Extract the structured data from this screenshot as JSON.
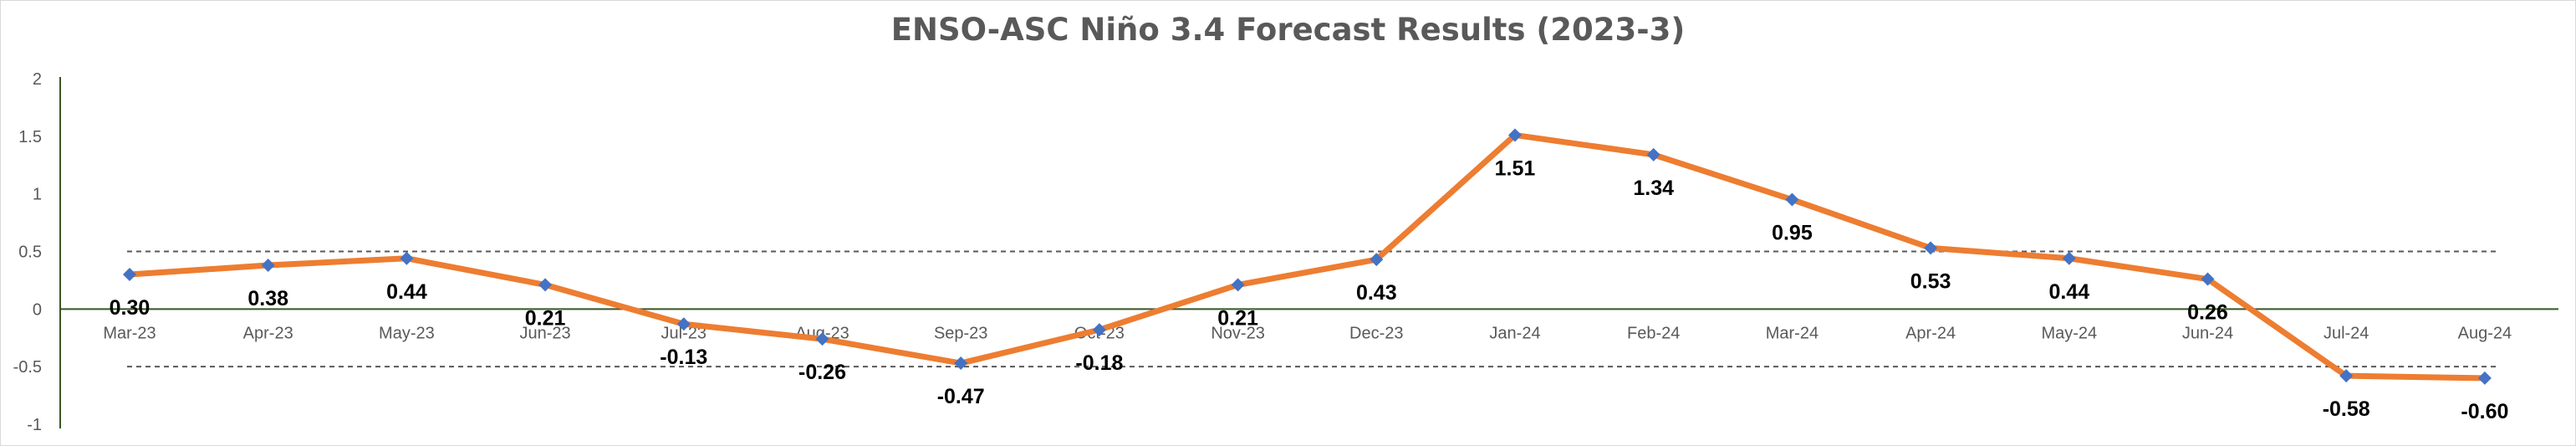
{
  "chart_data": {
    "type": "line",
    "title": "ENSO-ASC Niño 3.4 Forecast Results (2023-3)",
    "xlabel": "",
    "ylabel": "",
    "categories": [
      "Mar-23",
      "Apr-23",
      "May-23",
      "Jun-23",
      "Jul-23",
      "Aug-23",
      "Sep-23",
      "Oct-23",
      "Nov-23",
      "Dec-23",
      "Jan-24",
      "Feb-24",
      "Mar-24",
      "Apr-24",
      "May-24",
      "Jun-24",
      "Jul-24",
      "Aug-24"
    ],
    "series": [
      {
        "values": [
          0.3,
          0.38,
          0.44,
          0.21,
          -0.13,
          -0.26,
          -0.47,
          -0.18,
          0.21,
          0.43,
          1.51,
          1.34,
          0.95,
          0.53,
          0.44,
          0.26,
          -0.58,
          -0.6
        ],
        "labels": [
          "0.30",
          "0.38",
          "0.44",
          "0.21",
          "-0.13",
          "-0.26",
          "-0.47",
          "-0.18",
          "0.21",
          "0.43",
          "1.51",
          "1.34",
          "0.95",
          "0.53",
          "0.44",
          "0.26",
          "-0.58",
          "-0.60"
        ],
        "line_color": "#ED7D31",
        "marker_color": "#4472C4",
        "marker": "diamond"
      }
    ],
    "yticks": [
      "2",
      "1.5",
      "1",
      "0.5",
      "0",
      "-0.5",
      "-1"
    ],
    "ylim": [
      -1,
      2
    ],
    "threshold_lines": [
      0.5,
      -0.5
    ],
    "grid": false,
    "legend": "none",
    "axis_color": "#375623"
  }
}
